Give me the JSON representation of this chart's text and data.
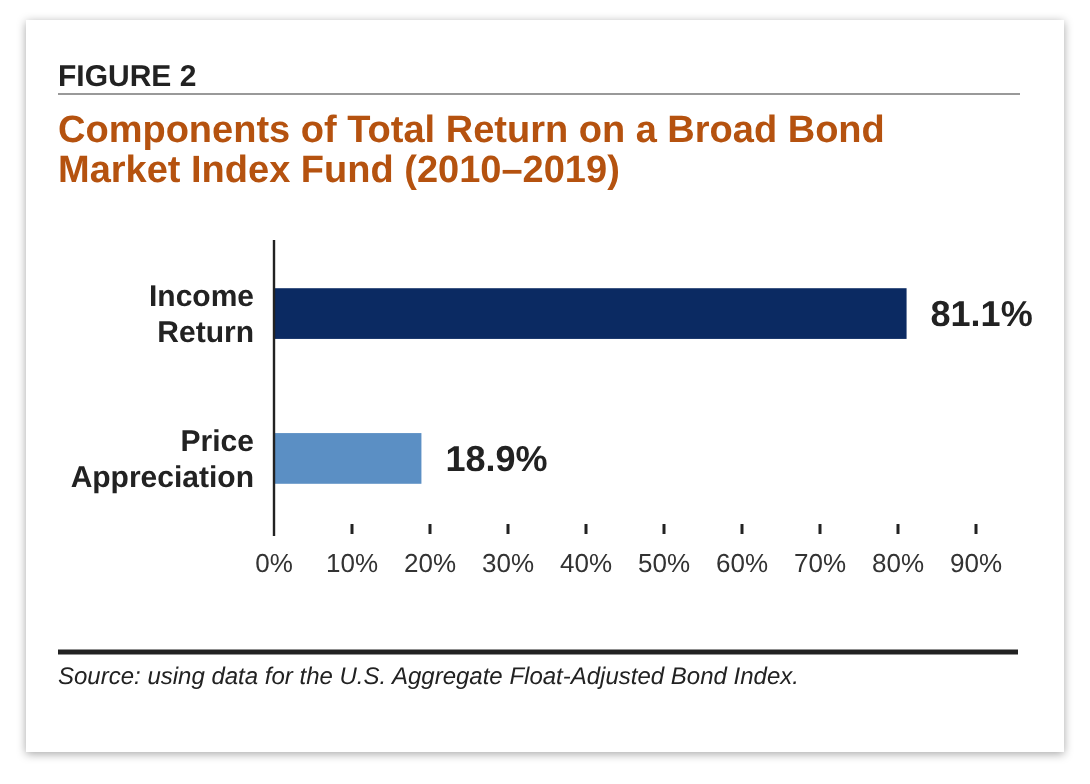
{
  "chart_data": {
    "type": "bar",
    "orientation": "horizontal",
    "title": "Components of Total Return on a Broad Bond Market Index Fund (2010–2019)",
    "annotations": [
      "FIGURE 2",
      "Source: using data for the U.S. Aggregate Float-Adjusted Bond Index."
    ],
    "categories": [
      "Income Return",
      "Price Appreciation"
    ],
    "values": [
      81.1,
      18.9
    ],
    "colors": [
      "#0b2a62",
      "#5b8fc4"
    ],
    "value_labels": [
      "81.1%",
      "18.9%"
    ],
    "xlim": [
      0,
      90
    ],
    "xticks": [
      {
        "value": 0,
        "label": "0%"
      },
      {
        "value": 10,
        "label": "10%"
      },
      {
        "value": 20,
        "label": "20%"
      },
      {
        "value": 30,
        "label": "30%"
      },
      {
        "value": 40,
        "label": "40%"
      },
      {
        "value": 50,
        "label": "50%"
      },
      {
        "value": 60,
        "label": "60%"
      },
      {
        "value": 70,
        "label": "70%"
      },
      {
        "value": 80,
        "label": "80%"
      },
      {
        "value": 90,
        "label": "90%"
      }
    ],
    "grid": false
  }
}
